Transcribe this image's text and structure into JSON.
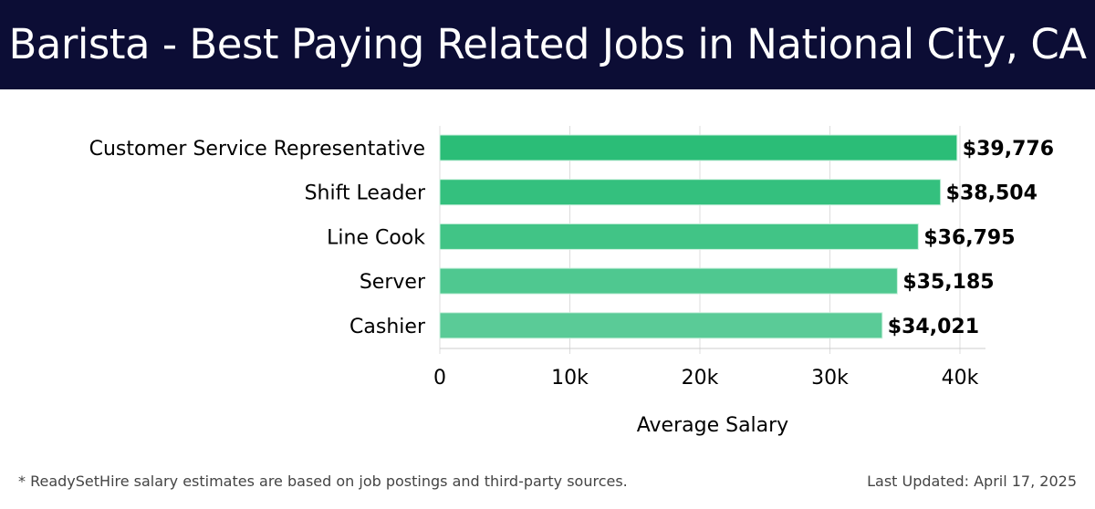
{
  "header": {
    "title": "Barista - Best Paying Related Jobs in National City, CA"
  },
  "chart_data": {
    "type": "bar",
    "orientation": "horizontal",
    "categories": [
      "Customer Service Representative",
      "Shift Leader",
      "Line Cook",
      "Server",
      "Cashier"
    ],
    "values": [
      39776,
      38504,
      36795,
      35185,
      34021
    ],
    "data_labels": [
      "$39,776",
      "$38,504",
      "$36,795",
      "$35,185",
      "$34,021"
    ],
    "colors": [
      "#2bbd77",
      "#34c07e",
      "#41c486",
      "#4fc890",
      "#5acb97"
    ],
    "xlabel": "Average Salary",
    "ylabel": "",
    "xlim": [
      0,
      42000
    ],
    "xticks": [
      0,
      10000,
      20000,
      30000,
      40000
    ],
    "xtick_labels": [
      "0",
      "10k",
      "20k",
      "30k",
      "40k"
    ],
    "grid": true
  },
  "footer": {
    "note": "* ReadySetHire salary estimates are based on job postings and third-party sources.",
    "updated": "Last Updated: April 17, 2025"
  }
}
